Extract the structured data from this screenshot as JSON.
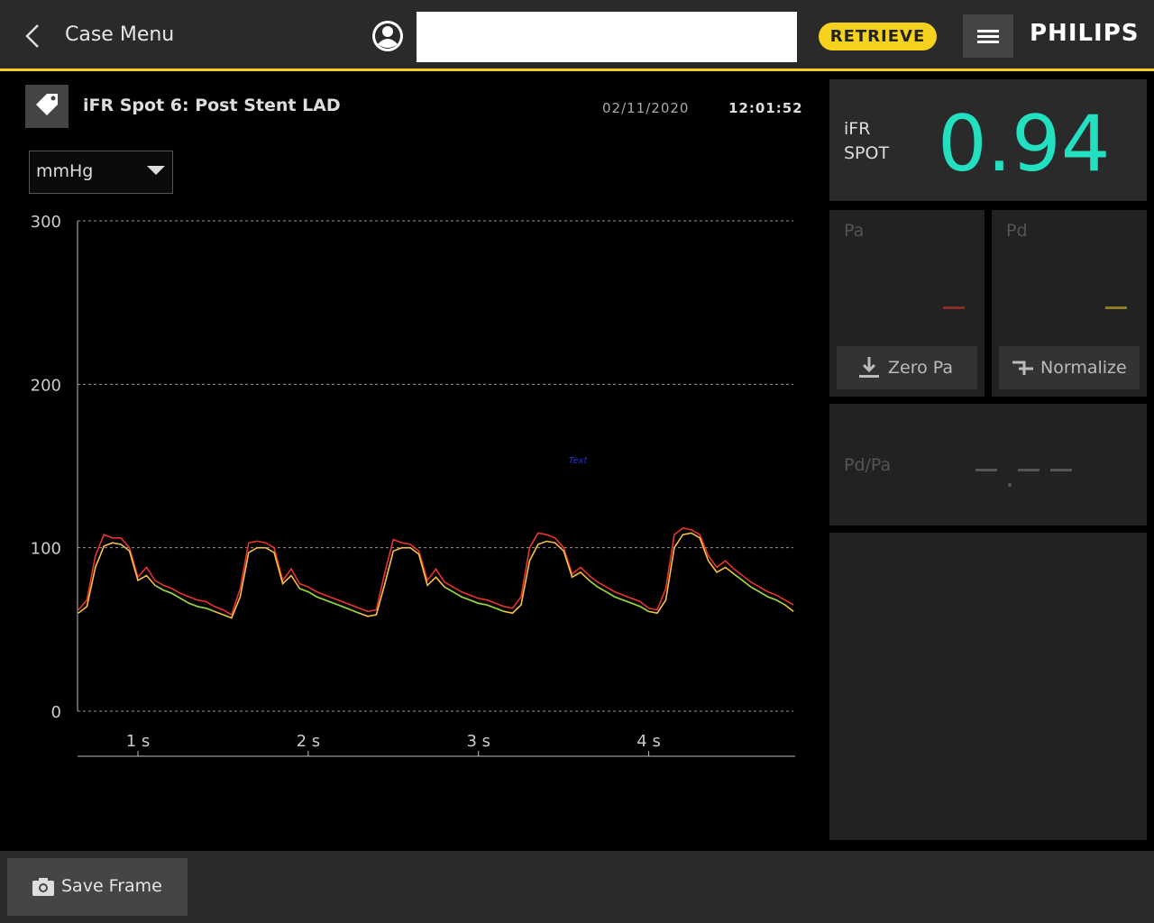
{
  "header": {
    "back_label": "Case Menu",
    "retrieve": "RETRIEVE",
    "brand": "PHILIPS"
  },
  "recording": {
    "title": "iFR Spot 6: Post Stent LAD",
    "date": "02/11/2020",
    "time": "12:01:52",
    "unit": "mmHg"
  },
  "ifr": {
    "label_line1": "iFR",
    "label_line2": "SPOT",
    "value": "0.94"
  },
  "pa_panel": {
    "label": "Pa",
    "button": "Zero Pa"
  },
  "pd_panel": {
    "label": "Pd",
    "button": "Normalize"
  },
  "ratio_panel": {
    "label": "Pd/Pa"
  },
  "footer": {
    "save": "Save Frame"
  },
  "chart_data": {
    "type": "line",
    "annotation": "Text",
    "xlim": [
      0.645,
      4.86
    ],
    "ylim": [
      0,
      300
    ],
    "yticks": [
      0,
      100,
      200,
      300
    ],
    "xticks": [
      {
        "value": 1,
        "label": "1 s"
      },
      {
        "value": 2,
        "label": "2 s"
      },
      {
        "value": 3,
        "label": "3 s"
      },
      {
        "value": 4,
        "label": "4 s"
      }
    ],
    "grid": true,
    "x": [
      0.65,
      0.7,
      0.75,
      0.8,
      0.85,
      0.9,
      0.95,
      1,
      1.05,
      1.1,
      1.15,
      1.2,
      1.25,
      1.3,
      1.35,
      1.4,
      1.45,
      1.5,
      1.55,
      1.6,
      1.65,
      1.7,
      1.75,
      1.8,
      1.85,
      1.9,
      1.95,
      2,
      2.05,
      2.1,
      2.15,
      2.2,
      2.25,
      2.3,
      2.35,
      2.4,
      2.45,
      2.5,
      2.55,
      2.6,
      2.65,
      2.7,
      2.75,
      2.8,
      2.85,
      2.9,
      2.95,
      3,
      3.05,
      3.1,
      3.15,
      3.2,
      3.25,
      3.3,
      3.35,
      3.4,
      3.45,
      3.5,
      3.55,
      3.6,
      3.65,
      3.7,
      3.75,
      3.8,
      3.85,
      3.9,
      3.95,
      4,
      4.05,
      4.1,
      4.15,
      4.2,
      4.25,
      4.3,
      4.35,
      4.4,
      4.45,
      4.5,
      4.55,
      4.6,
      4.65,
      4.7,
      4.75,
      4.8,
      4.85
    ],
    "series": [
      {
        "color": "#e8332e",
        "values": [
          62,
          68,
          95,
          108,
          106,
          106,
          100,
          82,
          88,
          80,
          77,
          75,
          72,
          70,
          68,
          67,
          64,
          62,
          59,
          75,
          103,
          104,
          103,
          100,
          80,
          87,
          78,
          76,
          73,
          71,
          69,
          67,
          65,
          63,
          61,
          62,
          85,
          105,
          103,
          102,
          98,
          80,
          87,
          79,
          76,
          73,
          71,
          69,
          68,
          66,
          64,
          63,
          70,
          100,
          109,
          108,
          106,
          100,
          84,
          88,
          83,
          79,
          76,
          73,
          71,
          69,
          67,
          63,
          62,
          75,
          108,
          112,
          111,
          108,
          95,
          88,
          92,
          87,
          83,
          79,
          76,
          73,
          71,
          68,
          65
        ]
      },
      {
        "color": "#f5c242",
        "values": [
          60,
          64,
          88,
          101,
          103,
          102,
          98,
          80,
          83,
          77,
          74,
          72,
          69,
          66,
          64,
          63,
          61,
          59,
          57,
          70,
          97,
          100,
          100,
          97,
          78,
          83,
          75,
          73,
          70,
          68,
          66,
          64,
          62,
          60,
          58,
          59,
          78,
          98,
          100,
          100,
          96,
          77,
          82,
          76,
          73,
          70,
          68,
          66,
          65,
          63,
          61,
          60,
          65,
          92,
          102,
          104,
          103,
          98,
          82,
          85,
          80,
          76,
          73,
          70,
          68,
          66,
          64,
          61,
          60,
          68,
          100,
          108,
          109,
          106,
          92,
          85,
          88,
          84,
          80,
          76,
          73,
          70,
          68,
          65,
          61
        ]
      },
      {
        "color": "#8fd13a",
        "values": [
          null,
          null,
          null,
          null,
          null,
          null,
          null,
          null,
          null,
          77,
          74,
          72,
          69,
          66,
          64,
          63,
          61,
          null,
          null,
          null,
          null,
          null,
          null,
          null,
          null,
          null,
          75,
          73,
          70,
          68,
          66,
          64,
          62,
          60,
          null,
          null,
          null,
          null,
          null,
          null,
          null,
          null,
          null,
          76,
          73,
          70,
          68,
          66,
          65,
          63,
          61,
          null,
          null,
          null,
          null,
          null,
          null,
          null,
          null,
          null,
          80,
          76,
          73,
          70,
          68,
          66,
          64,
          61,
          null,
          null,
          null,
          null,
          null,
          null,
          null,
          null,
          null,
          84,
          80,
          76,
          73,
          70,
          68,
          65,
          null
        ]
      }
    ]
  }
}
